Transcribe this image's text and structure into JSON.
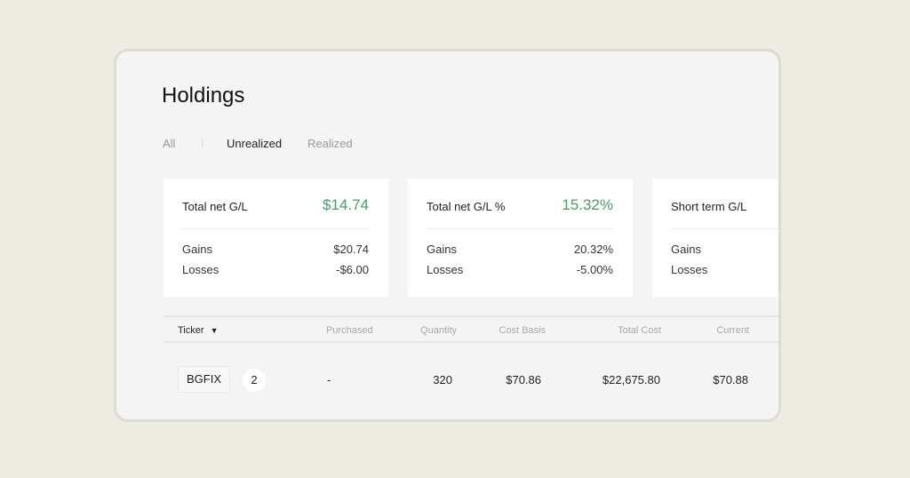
{
  "title": "Holdings",
  "tabs": [
    {
      "label": "All"
    },
    {
      "label": "Unrealized",
      "active": true
    },
    {
      "label": "Realized"
    }
  ],
  "cards": [
    {
      "title": "Total net G/L",
      "value": "$14.74",
      "gains_label": "Gains",
      "gains": "$20.74",
      "losses_label": "Losses",
      "losses": "-$6.00"
    },
    {
      "title": "Total net G/L %",
      "value": "15.32%",
      "gains_label": "Gains",
      "gains": "20.32%",
      "losses_label": "Losses",
      "losses": "-5.00%"
    },
    {
      "title": "Short term G/L",
      "gains_label": "Gains",
      "losses_label": "Losses"
    }
  ],
  "table": {
    "columns": [
      "Ticker",
      "Purchased",
      "Quantity",
      "Cost Basis",
      "Total Cost",
      "Current"
    ],
    "rows": [
      {
        "ticker": "BGFIX",
        "count": "2",
        "purchased": "-",
        "quantity": "320",
        "cost_basis": "$70.86",
        "total_cost": "$22,675.80",
        "current": "$70.88"
      }
    ]
  },
  "colors": {
    "positive": "#4a9a6a",
    "background": "#eeebe3"
  }
}
